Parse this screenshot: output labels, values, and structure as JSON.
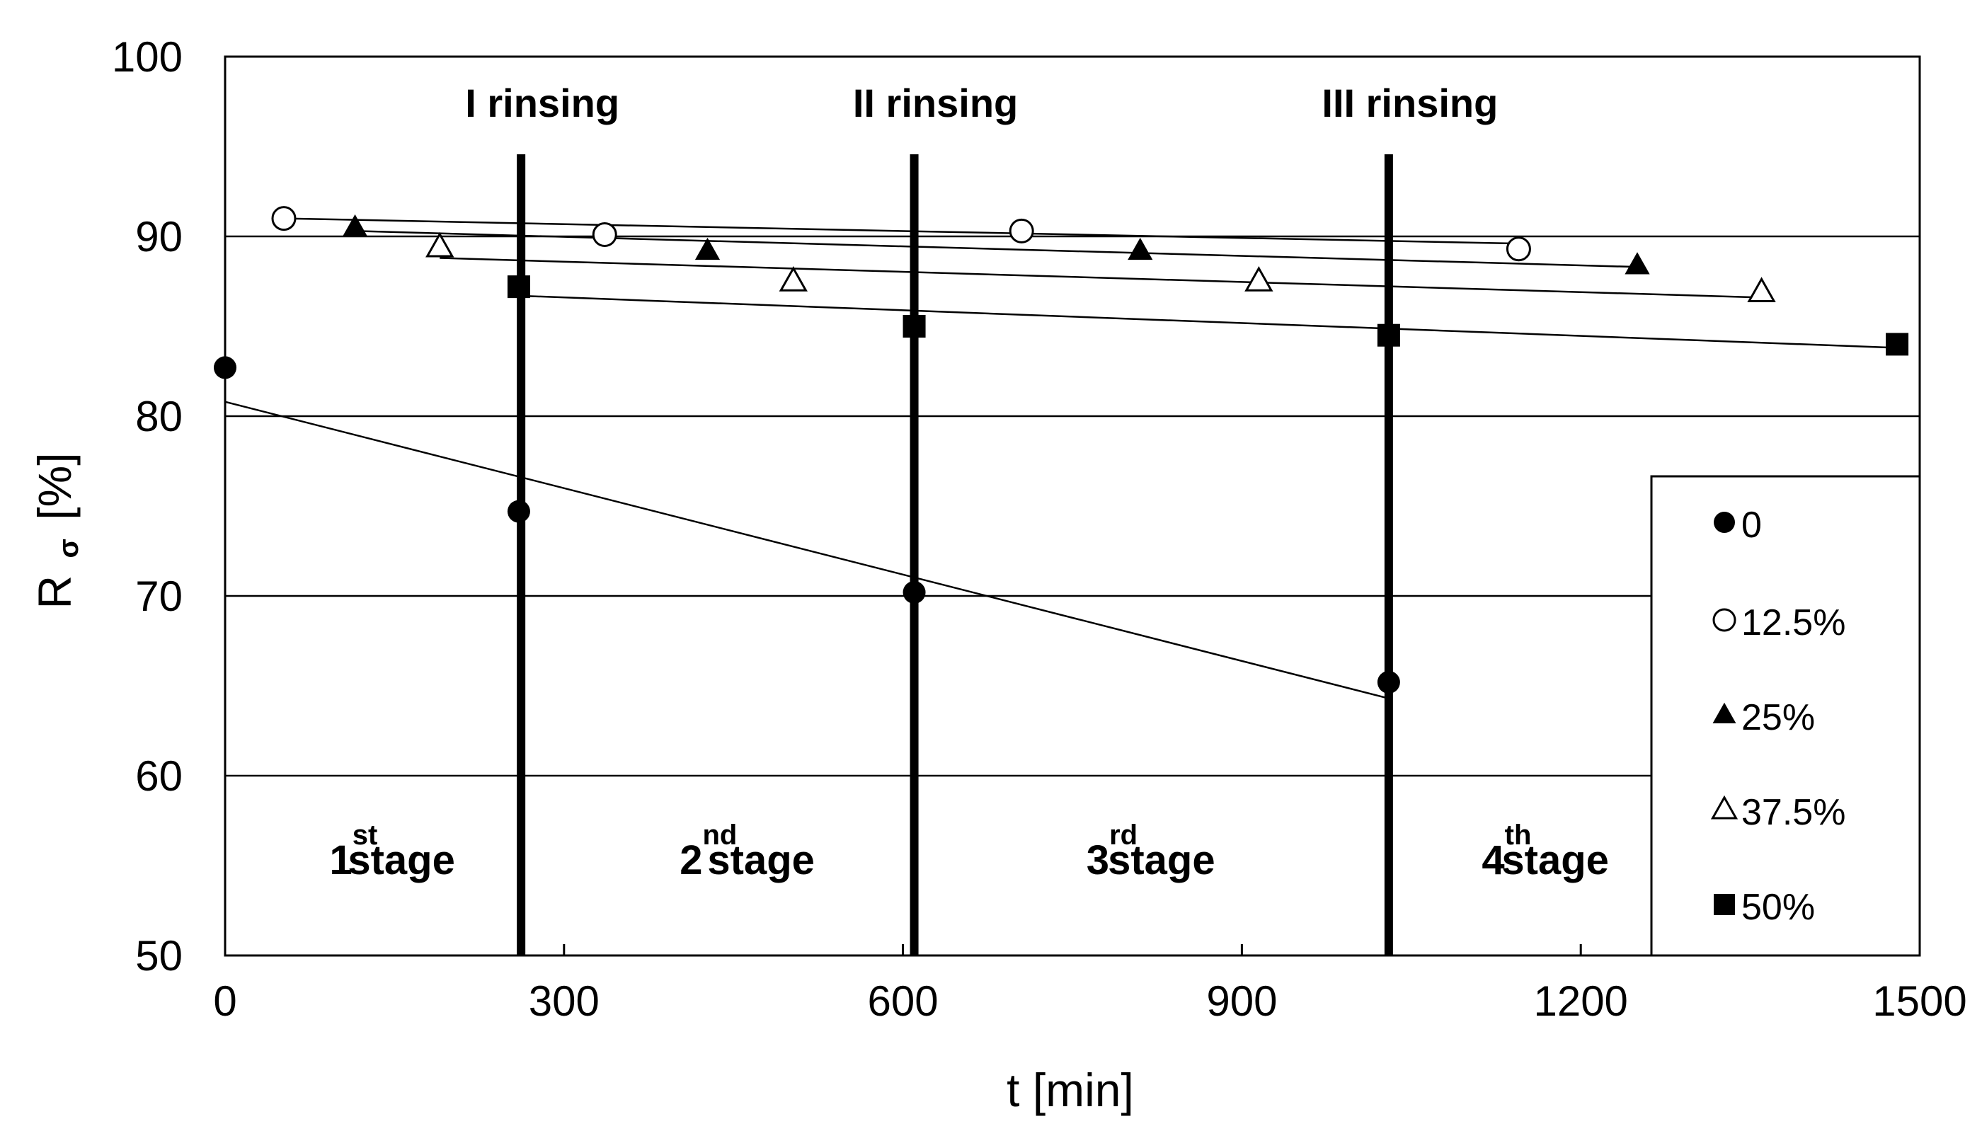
{
  "chart_data": {
    "type": "scatter",
    "xlabel": "t [min]",
    "ylabel": {
      "main": "R",
      "subscript": "σ",
      "unit": "[%]"
    },
    "xlim": [
      0,
      1500
    ],
    "ylim": [
      50,
      100
    ],
    "xticks": [
      0,
      300,
      600,
      900,
      1200,
      1500
    ],
    "yticks": [
      50,
      60,
      70,
      80,
      90,
      100
    ],
    "xtick_labels": [
      "0",
      "300",
      "600",
      "900",
      "1200",
      "1500"
    ],
    "ytick_labels": [
      "50",
      "60",
      "70",
      "80",
      "90",
      "100"
    ],
    "horizontal_grid": true,
    "legend_position": "right",
    "series": [
      {
        "name": "0",
        "marker": "filled-circle",
        "x": [
          0,
          260,
          610,
          1030
        ],
        "y": [
          82.7,
          74.7,
          70.2,
          65.2
        ],
        "trend": {
          "x": [
            0,
            1030
          ],
          "y": [
            80.8,
            64.3
          ]
        }
      },
      {
        "name": "12.5%",
        "marker": "open-circle",
        "x": [
          52,
          336,
          705,
          1145
        ],
        "y": [
          91.0,
          90.1,
          90.3,
          89.3
        ],
        "trend": {
          "x": [
            52,
            1145
          ],
          "y": [
            91.0,
            89.6
          ]
        }
      },
      {
        "name": "25%",
        "marker": "filled-triangle",
        "x": [
          115,
          427,
          810,
          1250
        ],
        "y": [
          90.5,
          89.2,
          89.2,
          88.4
        ],
        "trend": {
          "x": [
            115,
            1250
          ],
          "y": [
            90.3,
            88.3
          ]
        }
      },
      {
        "name": "37.5%",
        "marker": "open-triangle",
        "x": [
          190,
          503,
          915,
          1360
        ],
        "y": [
          89.4,
          87.5,
          87.5,
          86.9
        ],
        "trend": {
          "x": [
            190,
            1360
          ],
          "y": [
            88.8,
            86.6
          ]
        }
      },
      {
        "name": "50%",
        "marker": "filled-square",
        "x": [
          260,
          610,
          1030,
          1480
        ],
        "y": [
          87.2,
          85.0,
          84.5,
          84.0
        ],
        "trend": {
          "x": [
            260,
            1480
          ],
          "y": [
            86.7,
            83.8
          ]
        }
      }
    ],
    "rinsing_lines": [
      {
        "x": 262,
        "label": "I rinsing"
      },
      {
        "x": 610,
        "label": "II rinsing"
      },
      {
        "x": 1030,
        "label": "III rinsing"
      }
    ],
    "stages": [
      {
        "number": "1",
        "sup": "st",
        "word": "stage",
        "x": 130
      },
      {
        "number": "2",
        "sup": "nd",
        "word": "stage",
        "x": 440
      },
      {
        "number": "3",
        "sup": "rd",
        "word": "stage",
        "x": 800
      },
      {
        "number": "4",
        "sup": "th",
        "word": "stage",
        "x": 1150
      }
    ]
  }
}
